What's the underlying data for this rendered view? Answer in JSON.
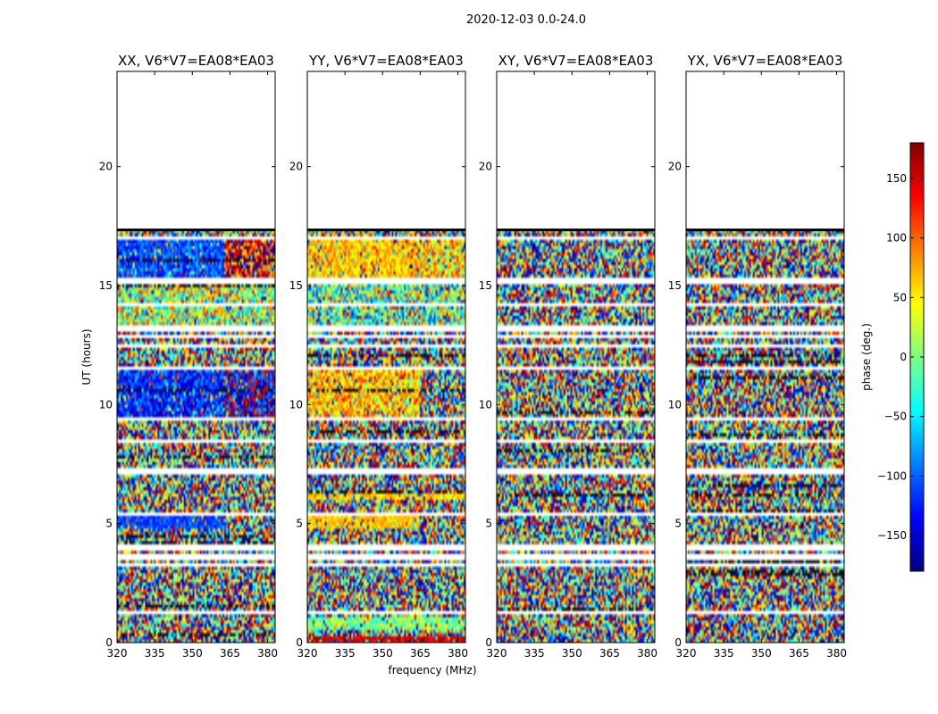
{
  "figure_title": "2020-12-03 0.0-24.0",
  "colors": {
    "colormap": [
      "#00007f",
      "#0000ff",
      "#007fff",
      "#00ffff",
      "#7fff7f",
      "#ffff00",
      "#ff7f00",
      "#ff0000",
      "#7f0000"
    ],
    "gap": "#ffffff",
    "frame": "#000000"
  },
  "chart_data": {
    "type": "heatmap",
    "xlabel": "frequency (MHz)",
    "ylabel": "UT (hours)",
    "xlim": [
      320,
      383
    ],
    "xticks": [
      320,
      335,
      350,
      365,
      380
    ],
    "ylim": [
      0,
      24
    ],
    "yticks": [
      0,
      5,
      10,
      15,
      20
    ],
    "data_extent_hours": [
      0,
      17.3
    ],
    "colorbar": {
      "label": "phase (deg.)",
      "range": [
        -180,
        180
      ],
      "ticks": [
        -150,
        -100,
        -50,
        0,
        50,
        100,
        150
      ]
    },
    "row_gaps_hours": [
      1.3,
      3.3,
      3.6,
      4.0,
      5.4,
      7.2,
      8.5,
      9.4,
      11.5,
      12.5,
      12.9,
      13.2,
      14.2,
      15.2,
      17.0
    ],
    "panels": [
      {
        "title": "XX, V6*V7=EA08*EA03",
        "regions": [
          {
            "t": [
              15.2,
              17.0
            ],
            "f": [
              320,
              363
            ],
            "phase": -105,
            "spread": 40
          },
          {
            "t": [
              15.2,
              17.0
            ],
            "f": [
              363,
              383
            ],
            "phase": 130,
            "spread": 80
          },
          {
            "t": [
              13.3,
              15.2
            ],
            "f": [
              320,
              383
            ],
            "phase": 15,
            "spread": 100
          },
          {
            "t": [
              9.5,
              11.5
            ],
            "f": [
              320,
              363
            ],
            "phase": -120,
            "spread": 45
          },
          {
            "t": [
              9.5,
              11.5
            ],
            "f": [
              363,
              383
            ],
            "phase": -155,
            "spread": 90
          },
          {
            "t": [
              4.8,
              5.3
            ],
            "f": [
              320,
              363
            ],
            "phase": -110,
            "spread": 25
          }
        ]
      },
      {
        "title": "YY, V6*V7=EA08*EA03",
        "regions": [
          {
            "t": [
              15.2,
              17.0
            ],
            "f": [
              320,
              364
            ],
            "phase": 65,
            "spread": 35
          },
          {
            "t": [
              15.2,
              17.0
            ],
            "f": [
              364,
              383
            ],
            "phase": 55,
            "spread": 70
          },
          {
            "t": [
              13.3,
              15.2
            ],
            "f": [
              320,
              383
            ],
            "phase": -10,
            "spread": 110
          },
          {
            "t": [
              9.5,
              11.5
            ],
            "f": [
              320,
              365
            ],
            "phase": 65,
            "spread": 55
          },
          {
            "t": [
              4.8,
              5.3
            ],
            "f": [
              320,
              365
            ],
            "phase": 65,
            "spread": 20
          },
          {
            "t": [
              6.0,
              6.3
            ],
            "f": [
              320,
              383
            ],
            "phase": 60,
            "spread": 30
          },
          {
            "t": [
              0.5,
              1.0
            ],
            "f": [
              320,
              383
            ],
            "phase": 0,
            "spread": 40
          },
          {
            "t": [
              0.0,
              0.2
            ],
            "f": [
              320,
              383
            ],
            "phase": 150,
            "spread": 30
          }
        ]
      },
      {
        "title": "XY, V6*V7=EA08*EA03",
        "regions": []
      },
      {
        "title": "YX, V6*V7=EA08*EA03",
        "regions": []
      }
    ]
  }
}
